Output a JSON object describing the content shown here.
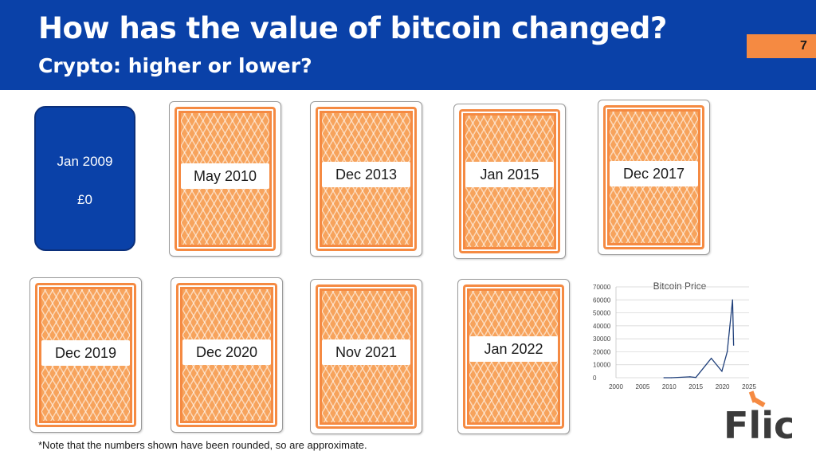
{
  "header": {
    "title": "How has the value of bitcoin changed?",
    "subtitle": "Crypto: higher or lower?",
    "page_number": "7"
  },
  "start_card": {
    "date": "Jan 2009",
    "value": "£0"
  },
  "cards": [
    {
      "label": "May 2010"
    },
    {
      "label": "Dec 2013"
    },
    {
      "label": "Jan 2015"
    },
    {
      "label": "Dec 2017"
    },
    {
      "label": "Dec 2019"
    },
    {
      "label": "Dec 2020"
    },
    {
      "label": "Nov 2021"
    },
    {
      "label": "Jan 2022"
    }
  ],
  "chart_data": {
    "type": "line",
    "title": "Bitcoin Price",
    "xlabel": "",
    "ylabel": "",
    "xlim": [
      2000,
      2025
    ],
    "ylim": [
      0,
      70000
    ],
    "x_ticks": [
      "2000",
      "2005",
      "2010",
      "2015",
      "2020",
      "2025"
    ],
    "y_ticks": [
      "70000",
      "60000",
      "50000",
      "40000",
      "30000",
      "20000",
      "10000",
      "0"
    ],
    "grid": true,
    "series": [
      {
        "color": "#1f3f7a",
        "x": [
          2009.0,
          2010.4,
          2013.9,
          2015.0,
          2017.9,
          2019.9,
          2020.9,
          2021.9,
          2022.1
        ],
        "y": [
          0,
          0,
          700,
          200,
          15000,
          5000,
          20000,
          60000,
          25000
        ]
      }
    ]
  },
  "logo": {
    "text": "Flic",
    "accent_color": "#f58a42"
  },
  "footnote": "*Note that the numbers shown have been rounded, so are approximate.",
  "colors": {
    "header_bg": "#0a41a8",
    "card_orange": "#f58a42",
    "page_badge": "#f58a42"
  }
}
